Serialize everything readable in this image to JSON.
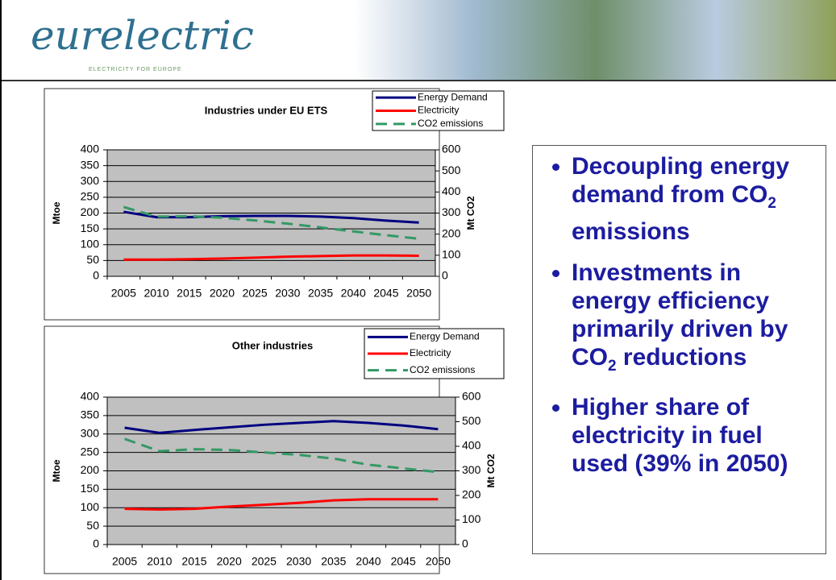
{
  "header": {
    "logo": "eurelectric",
    "tagline": "ELECTRICITY FOR EUROPE"
  },
  "chart_data": [
    {
      "type": "line",
      "title": "Industries under EU ETS",
      "y_label": "Mtoe",
      "y2_label": "Mt CO2",
      "categories": [
        "2005",
        "2010",
        "2015",
        "2020",
        "2025",
        "2030",
        "2035",
        "2040",
        "2045",
        "2050"
      ],
      "ylim": [
        0,
        400
      ],
      "yticks": [
        0,
        50,
        100,
        150,
        200,
        250,
        300,
        350,
        400
      ],
      "y2lim": [
        0,
        600
      ],
      "y2ticks": [
        0,
        100,
        200,
        300,
        400,
        500,
        600
      ],
      "grid": true,
      "legend": "top-right",
      "background": "#c0c0c0",
      "series": [
        {
          "name": "Energy Demand",
          "color": "#000080",
          "style": "solid",
          "values": [
            204,
            187,
            187,
            190,
            191,
            191,
            189,
            184,
            176,
            170
          ]
        },
        {
          "name": "Electricity",
          "color": "#ff0000",
          "style": "solid",
          "values": [
            53,
            53,
            54,
            56,
            59,
            62,
            64,
            66,
            66,
            65
          ]
        },
        {
          "name": "CO2 emissions",
          "color": "#339966",
          "style": "dashed",
          "axis": "y2",
          "values": [
            329,
            283,
            285,
            278,
            265,
            250,
            232,
            213,
            195,
            178
          ]
        }
      ]
    },
    {
      "type": "line",
      "title": "Other industries",
      "y_label": "Mtoe",
      "y2_label": "Mt CO2",
      "categories": [
        "2005",
        "2010",
        "2015",
        "2020",
        "2025",
        "2030",
        "2035",
        "2040",
        "2045",
        "2050"
      ],
      "ylim": [
        0,
        400
      ],
      "yticks": [
        0,
        50,
        100,
        150,
        200,
        250,
        300,
        350,
        400
      ],
      "y2lim": [
        0,
        600
      ],
      "y2ticks": [
        0,
        100,
        200,
        300,
        400,
        500,
        600
      ],
      "grid": true,
      "legend": "top-right",
      "background": "#c0c0c0",
      "series": [
        {
          "name": "Energy Demand",
          "color": "#000080",
          "style": "solid",
          "values": [
            317,
            303,
            311,
            318,
            325,
            330,
            335,
            330,
            323,
            313
          ]
        },
        {
          "name": "Electricity",
          "color": "#ff0000",
          "style": "solid",
          "values": [
            97,
            95,
            97,
            103,
            108,
            113,
            120,
            123,
            123,
            123
          ]
        },
        {
          "name": "CO2 emissions",
          "color": "#339966",
          "style": "dashed",
          "axis": "y2",
          "values": [
            430,
            380,
            388,
            385,
            375,
            365,
            350,
            325,
            310,
            295
          ]
        }
      ]
    }
  ],
  "bullets": [
    {
      "before": "Decoupling energy demand from CO",
      "sub": "2",
      "after": " emissions"
    },
    {
      "before": "Investments in energy efficiency primarily driven by CO",
      "sub": "2",
      "after": " reductions"
    },
    {
      "before": "Higher share of electricity in fuel used (39% in 2050)"
    }
  ]
}
